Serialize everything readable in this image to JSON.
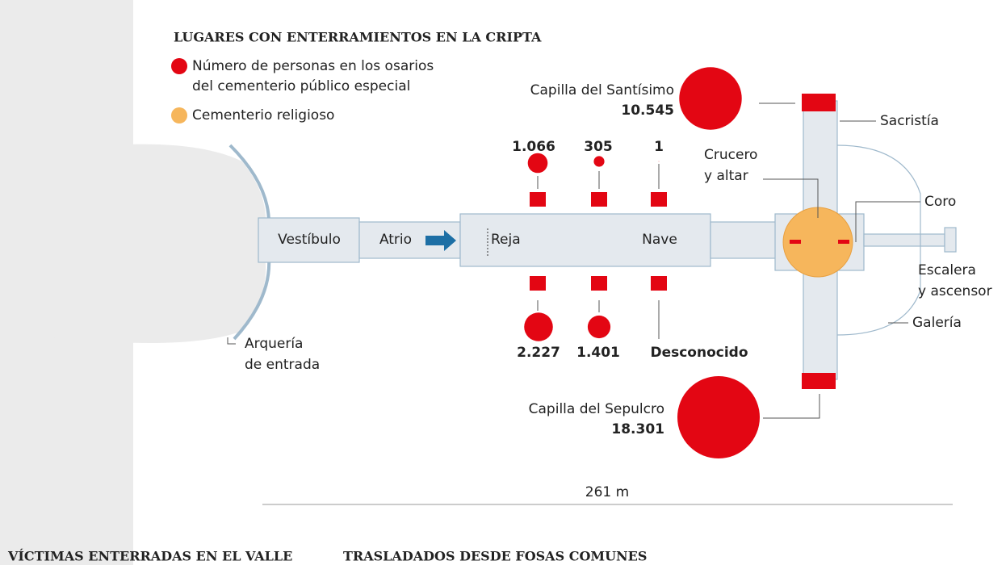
{
  "title": "LUGARES CON ENTERRAMIENTOS EN LA CRIPTA",
  "legend": [
    {
      "lines": [
        "Número de personas en los osarios",
        "del cementerio público especial"
      ],
      "color": "#e30613"
    },
    {
      "lines": [
        "Cementerio religioso"
      ],
      "color": "#f6b65c"
    }
  ],
  "places": {
    "vestibulo": "Vestíbulo",
    "atrio": "Atrio",
    "reja": "Reja",
    "nave": "Nave",
    "arqueria": [
      "Arquería",
      "de entrada"
    ],
    "sacristia": "Sacristía",
    "crucero": [
      "Crucero",
      "y altar"
    ],
    "coro": "Coro",
    "escalera": [
      "Escalera",
      "y ascensor"
    ],
    "galeria": "Galería"
  },
  "bubbles": [
    {
      "name": "Capilla  del Santísimo",
      "label": "10.545",
      "value": 10545
    },
    {
      "label": "1.066",
      "value": 1066
    },
    {
      "label": "305",
      "value": 305
    },
    {
      "label": "1",
      "value": 1
    },
    {
      "label": "2.227",
      "value": 2227
    },
    {
      "label": "1.401",
      "value": 1401
    },
    {
      "label": "Desconocido"
    },
    {
      "name": "Capilla  del Sepulcro",
      "label": "18.301",
      "value": 18301
    }
  ],
  "scale_label": "261 m",
  "sections": [
    "VÍCTIMAS ENTERRADAS EN EL VALLE",
    "TRASLADADOS DESDE FOSAS COMUNES"
  ]
}
